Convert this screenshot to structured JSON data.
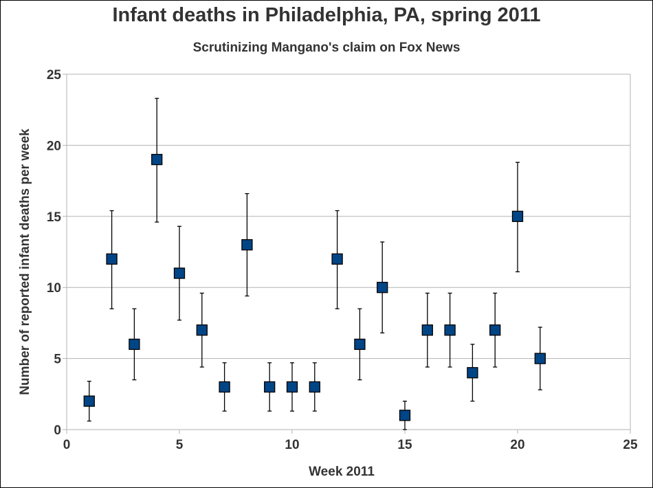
{
  "chart_data": {
    "type": "scatter",
    "title": "Infant deaths in Philadelphia, PA, spring 2011",
    "subtitle": "Scrutinizing Mangano's claim on Fox News",
    "xlabel": "Week 2011",
    "ylabel": "Number of reported infant deaths per week",
    "xlim": [
      0,
      25
    ],
    "ylim": [
      0,
      25
    ],
    "xticks": [
      0,
      5,
      10,
      15,
      20,
      25
    ],
    "yticks": [
      0,
      5,
      10,
      15,
      20,
      25
    ],
    "grid": "horizontal",
    "legend": "none",
    "marker_color": "#004586",
    "gridline_color": "#b3b3b3",
    "points": [
      {
        "x": 1,
        "y": 2,
        "err_low": 0.6,
        "err_high": 3.4
      },
      {
        "x": 2,
        "y": 12,
        "err_low": 8.5,
        "err_high": 15.4
      },
      {
        "x": 3,
        "y": 6,
        "err_low": 3.5,
        "err_high": 8.5
      },
      {
        "x": 4,
        "y": 19,
        "err_low": 14.6,
        "err_high": 23.3
      },
      {
        "x": 5,
        "y": 11,
        "err_low": 7.7,
        "err_high": 14.3
      },
      {
        "x": 6,
        "y": 7,
        "err_low": 4.4,
        "err_high": 9.6
      },
      {
        "x": 7,
        "y": 3,
        "err_low": 1.3,
        "err_high": 4.7
      },
      {
        "x": 8,
        "y": 13,
        "err_low": 9.4,
        "err_high": 16.6
      },
      {
        "x": 9,
        "y": 3,
        "err_low": 1.3,
        "err_high": 4.7
      },
      {
        "x": 10,
        "y": 3,
        "err_low": 1.3,
        "err_high": 4.7
      },
      {
        "x": 11,
        "y": 3,
        "err_low": 1.3,
        "err_high": 4.7
      },
      {
        "x": 12,
        "y": 12,
        "err_low": 8.5,
        "err_high": 15.4
      },
      {
        "x": 13,
        "y": 6,
        "err_low": 3.5,
        "err_high": 8.5
      },
      {
        "x": 14,
        "y": 10,
        "err_low": 6.8,
        "err_high": 13.2
      },
      {
        "x": 15,
        "y": 1,
        "err_low": 0,
        "err_high": 2
      },
      {
        "x": 16,
        "y": 7,
        "err_low": 4.4,
        "err_high": 9.6
      },
      {
        "x": 17,
        "y": 7,
        "err_low": 4.4,
        "err_high": 9.6
      },
      {
        "x": 18,
        "y": 4,
        "err_low": 2,
        "err_high": 6
      },
      {
        "x": 19,
        "y": 7,
        "err_low": 4.4,
        "err_high": 9.6
      },
      {
        "x": 20,
        "y": 15,
        "err_low": 11.1,
        "err_high": 18.8
      },
      {
        "x": 21,
        "y": 5,
        "err_low": 2.8,
        "err_high": 7.2
      }
    ]
  }
}
